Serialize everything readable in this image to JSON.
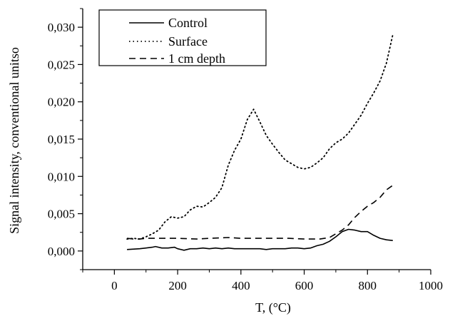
{
  "chart_data": {
    "type": "line",
    "title": "",
    "xlabel": "T, (°C)",
    "ylabel": "Signal intensity, conventional unitso",
    "xlim": [
      -100,
      1000
    ],
    "ylim": [
      -0.0025,
      0.0325
    ],
    "x_ticks": [
      0,
      200,
      400,
      600,
      800,
      1000
    ],
    "x_tick_labels": [
      "0",
      "200",
      "400",
      "600",
      "800",
      "1000"
    ],
    "y_ticks": [
      0.0,
      0.005,
      0.01,
      0.015,
      0.02,
      0.025,
      0.03
    ],
    "y_tick_labels": [
      "0,000",
      "0,005",
      "0,010",
      "0,015",
      "0,020",
      "0,025",
      "0,030"
    ],
    "grid": false,
    "legend_position": "top-left",
    "series": [
      {
        "name": "Control",
        "style": "solid",
        "x": [
          40,
          80,
          100,
          120,
          130,
          150,
          170,
          190,
          200,
          220,
          240,
          260,
          280,
          300,
          320,
          340,
          360,
          380,
          400,
          420,
          440,
          460,
          480,
          500,
          520,
          540,
          560,
          580,
          600,
          620,
          640,
          660,
          680,
          700,
          720,
          740,
          760,
          780,
          800,
          820,
          840,
          860,
          880
        ],
        "y": [
          0.0002,
          0.0003,
          0.0004,
          0.0005,
          0.0006,
          0.0004,
          0.0004,
          0.0005,
          0.0003,
          0.0001,
          0.0003,
          0.0003,
          0.0004,
          0.0003,
          0.0004,
          0.0003,
          0.0004,
          0.0003,
          0.0003,
          0.0003,
          0.0003,
          0.0003,
          0.0002,
          0.0003,
          0.0003,
          0.0003,
          0.0004,
          0.0004,
          0.0003,
          0.0004,
          0.0007,
          0.0009,
          0.0013,
          0.0019,
          0.0026,
          0.0029,
          0.0028,
          0.0026,
          0.0026,
          0.0021,
          0.0017,
          0.0015,
          0.0014
        ]
      },
      {
        "name": "Surface",
        "style": "dotted",
        "x": [
          40,
          60,
          80,
          100,
          120,
          140,
          160,
          180,
          200,
          220,
          240,
          260,
          280,
          300,
          320,
          340,
          360,
          380,
          400,
          420,
          440,
          460,
          480,
          500,
          520,
          540,
          560,
          580,
          600,
          620,
          640,
          660,
          680,
          700,
          720,
          740,
          760,
          780,
          800,
          820,
          840,
          860,
          880
        ],
        "y": [
          0.0016,
          0.0017,
          0.0016,
          0.0019,
          0.0023,
          0.0028,
          0.0039,
          0.0046,
          0.0044,
          0.0046,
          0.0055,
          0.006,
          0.0059,
          0.0065,
          0.0072,
          0.0085,
          0.0115,
          0.0135,
          0.015,
          0.0176,
          0.019,
          0.0173,
          0.0155,
          0.0143,
          0.0132,
          0.0122,
          0.0117,
          0.0112,
          0.011,
          0.0112,
          0.0118,
          0.0125,
          0.0137,
          0.0145,
          0.015,
          0.0158,
          0.017,
          0.0182,
          0.0198,
          0.0212,
          0.0228,
          0.0252,
          0.029
        ]
      },
      {
        "name": "1 cm depth",
        "style": "dashed",
        "x": [
          40,
          60,
          80,
          100,
          140,
          200,
          260,
          300,
          360,
          400,
          450,
          500,
          550,
          600,
          650,
          680,
          700,
          720,
          740,
          760,
          780,
          800,
          820,
          840,
          860,
          880
        ],
        "y": [
          0.0017,
          0.0016,
          0.0016,
          0.0017,
          0.0017,
          0.0017,
          0.0016,
          0.0017,
          0.0018,
          0.0017,
          0.0017,
          0.0017,
          0.0017,
          0.0016,
          0.0016,
          0.0018,
          0.0023,
          0.0028,
          0.0035,
          0.0045,
          0.0053,
          0.006,
          0.0065,
          0.0072,
          0.0082,
          0.0088
        ]
      }
    ]
  }
}
